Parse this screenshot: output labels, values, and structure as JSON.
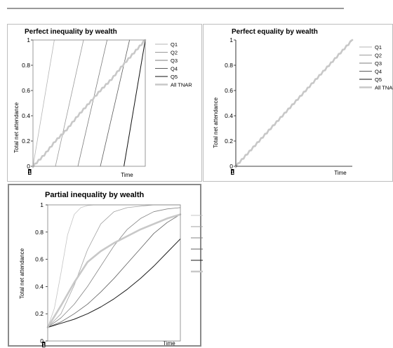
{
  "panels": [
    {
      "id": "p1",
      "title": "Perfect inequality by wealth",
      "ylabel": "Total net attendance",
      "xlabel": "Time",
      "x_tick": "1",
      "y_ticks": [
        "0",
        "0.2",
        "0.4",
        "0.6",
        "0.8",
        "1"
      ],
      "legend": [
        "Q1",
        "Q2",
        "Q3",
        "Q4",
        "Q5",
        "All TNAR"
      ]
    },
    {
      "id": "p2",
      "title": "Perfect equality by wealth",
      "ylabel": "Total net attendance",
      "xlabel": "Time",
      "x_tick": "1",
      "y_ticks": [
        "0",
        "0.2",
        "0.4",
        "0.6",
        "0.8",
        "1"
      ],
      "legend": [
        "Q1",
        "Q2",
        "Q3",
        "Q4",
        "Q5",
        "All TNAR"
      ]
    },
    {
      "id": "p3",
      "title": "Partial inequality by wealth",
      "ylabel": "Total net attendance",
      "xlabel": "Time",
      "x_tick": "1",
      "y_ticks": [
        "0",
        "0.2",
        "0.4",
        "0.6",
        "0.8",
        "1"
      ],
      "legend": [
        "",
        "",
        "",
        "",
        "",
        ""
      ]
    }
  ],
  "chart_data": [
    {
      "type": "line",
      "title": "Perfect inequality by wealth",
      "xlabel": "Time",
      "ylabel": "Total net attendance",
      "xlim": [
        0,
        1
      ],
      "ylim": [
        0,
        1
      ],
      "legend_position": "right",
      "grid": false,
      "series": [
        {
          "name": "Q1",
          "color": "#b5b5b5",
          "width": 0.8,
          "x": [
            0.0,
            0.19
          ],
          "y": [
            0,
            1
          ]
        },
        {
          "name": "Q2",
          "color": "#9a9a9a",
          "width": 0.8,
          "x": [
            0.2,
            0.45
          ],
          "y": [
            0,
            1
          ]
        },
        {
          "name": "Q3",
          "color": "#7c7c7c",
          "width": 0.8,
          "x": [
            0.4,
            0.66
          ],
          "y": [
            0,
            1
          ]
        },
        {
          "name": "Q4",
          "color": "#5c5c5c",
          "width": 0.8,
          "x": [
            0.6,
            0.86
          ],
          "y": [
            0,
            1
          ]
        },
        {
          "name": "Q5",
          "color": "#111111",
          "width": 1.0,
          "x": [
            0.81,
            1.0
          ],
          "y": [
            0,
            1
          ]
        },
        {
          "name": "All TNAR",
          "color": "#c8c8c8",
          "width": 2.6,
          "x": [
            0,
            0.1,
            0.2,
            0.3,
            0.4,
            0.5,
            0.6,
            0.7,
            0.8,
            0.9,
            1.0
          ],
          "y": [
            0,
            0.09,
            0.2,
            0.29,
            0.4,
            0.5,
            0.6,
            0.69,
            0.8,
            0.9,
            1.0
          ]
        }
      ]
    },
    {
      "type": "line",
      "title": "Perfect equality by wealth",
      "xlabel": "Time",
      "ylabel": "Total net attendance",
      "xlim": [
        0,
        1
      ],
      "ylim": [
        0,
        1
      ],
      "legend_position": "right",
      "grid": false,
      "series": [
        {
          "name": "Q1",
          "color": "#b5b5b5",
          "width": 0.8,
          "x": [
            0,
            1
          ],
          "y": [
            0,
            1
          ]
        },
        {
          "name": "Q2",
          "color": "#9a9a9a",
          "width": 0.8,
          "x": [
            0,
            1
          ],
          "y": [
            0,
            1
          ]
        },
        {
          "name": "Q3",
          "color": "#7c7c7c",
          "width": 0.8,
          "x": [
            0,
            1
          ],
          "y": [
            0,
            1
          ]
        },
        {
          "name": "Q4",
          "color": "#5c5c5c",
          "width": 0.8,
          "x": [
            0,
            1
          ],
          "y": [
            0,
            1
          ]
        },
        {
          "name": "Q5",
          "color": "#111111",
          "width": 1.0,
          "x": [
            0,
            1
          ],
          "y": [
            0,
            1
          ]
        },
        {
          "name": "All TNAR",
          "color": "#c8c8c8",
          "width": 2.6,
          "x": [
            0,
            0.1,
            0.2,
            0.3,
            0.4,
            0.5,
            0.6,
            0.7,
            0.8,
            0.9,
            1.0
          ],
          "y": [
            0,
            0.1,
            0.2,
            0.3,
            0.4,
            0.5,
            0.6,
            0.7,
            0.8,
            0.9,
            1.0
          ]
        }
      ]
    },
    {
      "type": "line",
      "title": "Partial inequality by wealth",
      "xlabel": "Time",
      "ylabel": "Total net attendance",
      "xlim": [
        0,
        1
      ],
      "ylim": [
        0,
        1
      ],
      "legend_position": "right",
      "grid": false,
      "series": [
        {
          "name": "",
          "color": "#c4c4c4",
          "width": 0.8,
          "x": [
            0,
            0.05,
            0.1,
            0.15,
            0.2,
            0.25,
            0.3,
            0.35,
            1.0
          ],
          "y": [
            0.1,
            0.24,
            0.5,
            0.78,
            0.93,
            0.98,
            0.995,
            1.0,
            1.0
          ]
        },
        {
          "name": "",
          "color": "#a2a2a2",
          "width": 0.8,
          "x": [
            0,
            0.1,
            0.2,
            0.3,
            0.4,
            0.5,
            0.6,
            0.7,
            0.8,
            1.0
          ],
          "y": [
            0.1,
            0.2,
            0.41,
            0.67,
            0.86,
            0.95,
            0.98,
            0.99,
            1.0,
            1.0
          ]
        },
        {
          "name": "",
          "color": "#848484",
          "width": 0.8,
          "x": [
            0,
            0.1,
            0.2,
            0.3,
            0.4,
            0.5,
            0.6,
            0.7,
            0.8,
            0.9,
            1.0
          ],
          "y": [
            0.1,
            0.17,
            0.27,
            0.4,
            0.55,
            0.7,
            0.82,
            0.9,
            0.95,
            0.97,
            0.98
          ]
        },
        {
          "name": "",
          "color": "#616161",
          "width": 0.8,
          "x": [
            0,
            0.1,
            0.2,
            0.3,
            0.4,
            0.5,
            0.6,
            0.7,
            0.8,
            0.9,
            1.0
          ],
          "y": [
            0.1,
            0.14,
            0.2,
            0.27,
            0.36,
            0.46,
            0.57,
            0.68,
            0.79,
            0.87,
            0.93
          ]
        },
        {
          "name": "",
          "color": "#1a1a1a",
          "width": 1.0,
          "x": [
            0,
            0.1,
            0.2,
            0.3,
            0.4,
            0.5,
            0.6,
            0.7,
            0.8,
            0.9,
            1.0
          ],
          "y": [
            0.1,
            0.13,
            0.16,
            0.2,
            0.25,
            0.31,
            0.38,
            0.46,
            0.55,
            0.65,
            0.75
          ]
        },
        {
          "name": "",
          "color": "#c8c8c8",
          "width": 2.6,
          "x": [
            0,
            0.1,
            0.2,
            0.3,
            0.4,
            0.5,
            0.6,
            0.7,
            0.8,
            0.9,
            1.0
          ],
          "y": [
            0.1,
            0.26,
            0.43,
            0.58,
            0.66,
            0.72,
            0.77,
            0.82,
            0.86,
            0.9,
            0.93
          ]
        }
      ]
    }
  ]
}
